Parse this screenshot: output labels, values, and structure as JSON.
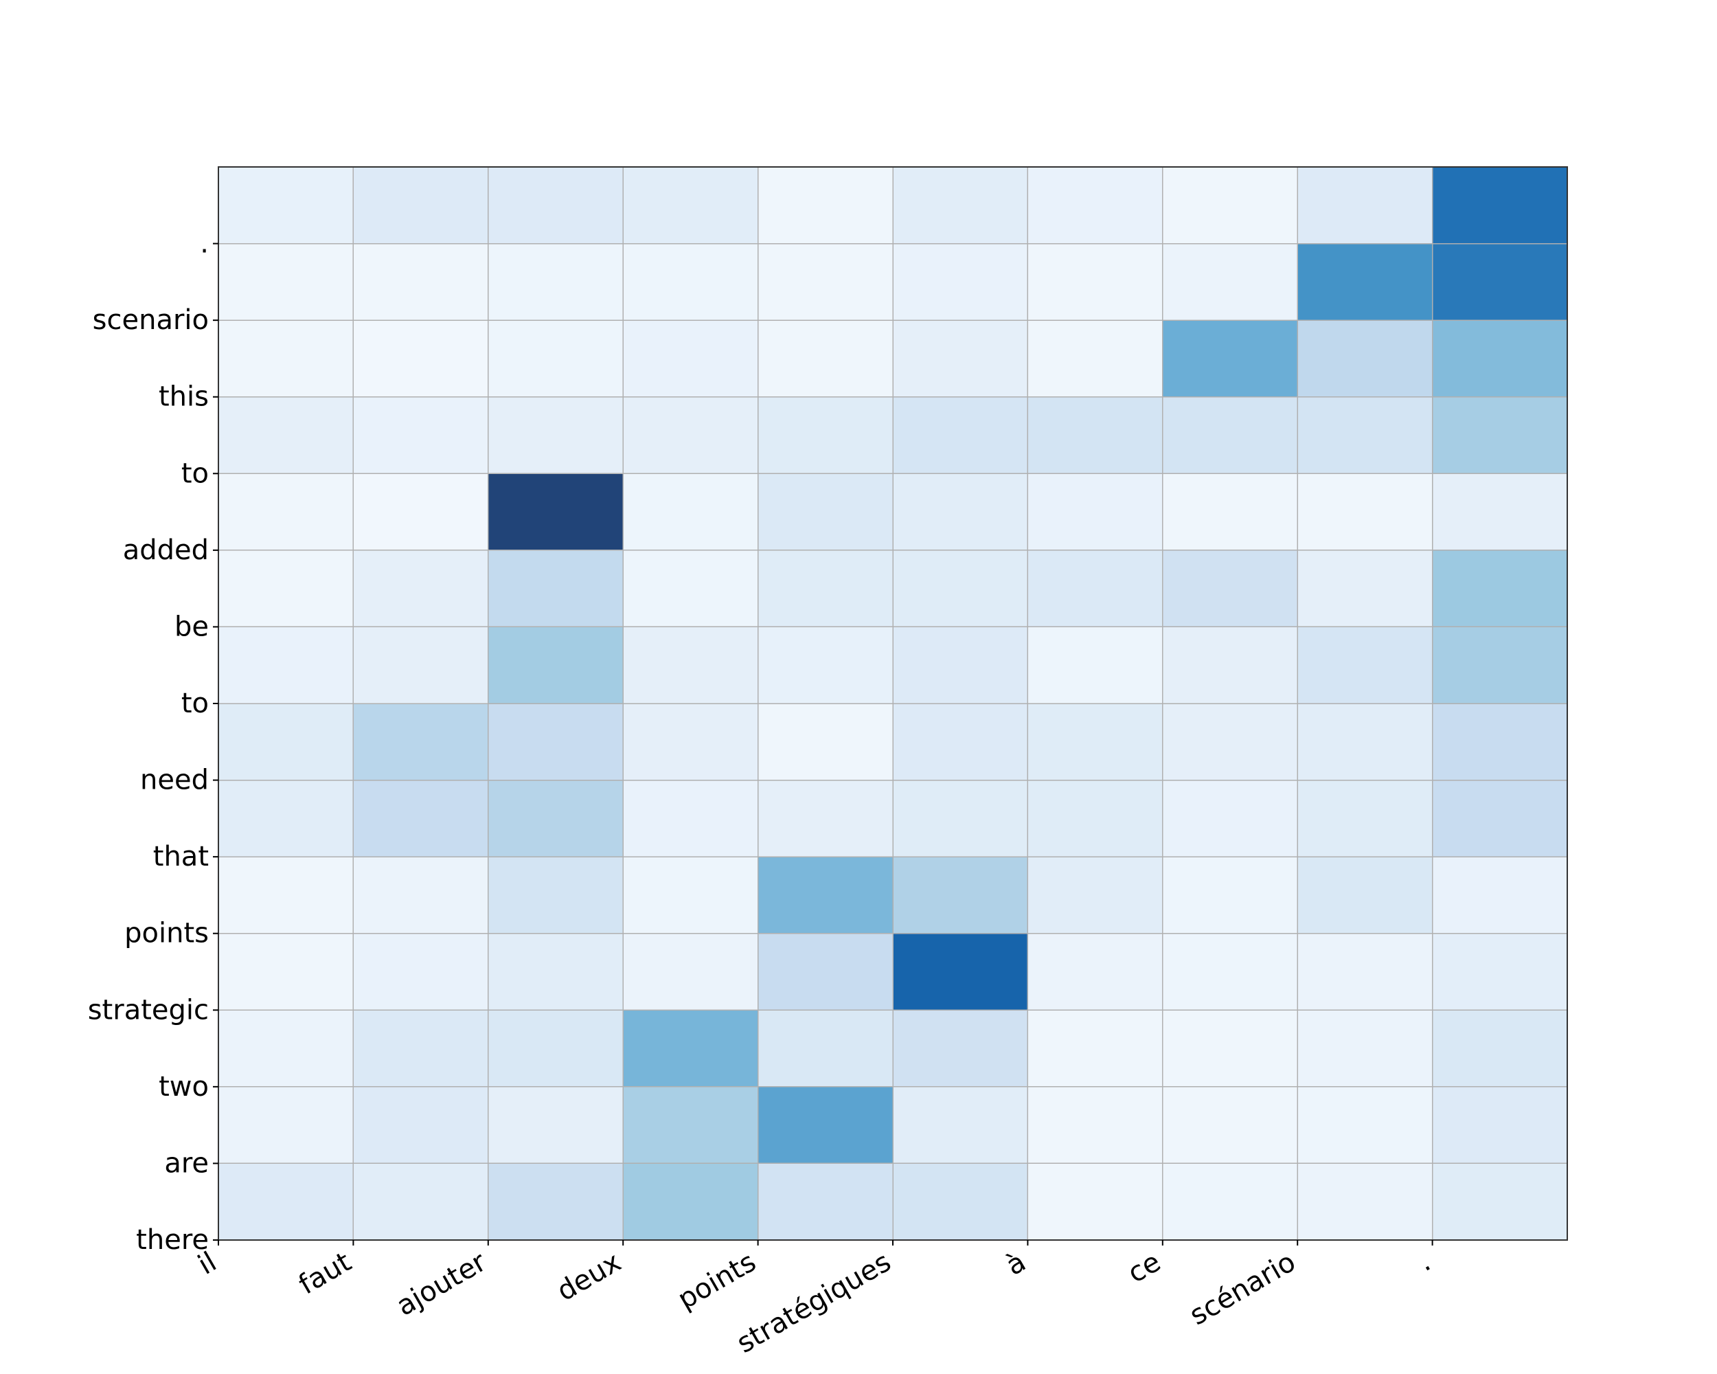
{
  "chart_data": {
    "type": "heatmap",
    "title": "",
    "xlabel": "",
    "ylabel": "",
    "x_labels": [
      "il",
      "faut",
      "ajouter",
      "deux",
      "points",
      "stratégiques",
      "à",
      "ce",
      "scénario",
      "."
    ],
    "y_labels": [
      "there",
      "are",
      "two",
      "strategic",
      "points",
      "that",
      "need",
      "to",
      "be",
      "added",
      "to",
      "this",
      "scenario",
      "."
    ],
    "colormap": "Blues",
    "grid": true,
    "legend": "none",
    "rows_top_to_bottom": [
      [
        0.08,
        0.13,
        0.13,
        0.11,
        0.04,
        0.11,
        0.07,
        0.04,
        0.13,
        0.75
      ],
      [
        0.04,
        0.04,
        0.05,
        0.05,
        0.04,
        0.07,
        0.04,
        0.06,
        0.62,
        0.72
      ],
      [
        0.04,
        0.03,
        0.05,
        0.07,
        0.04,
        0.09,
        0.04,
        0.5,
        0.27,
        0.44
      ],
      [
        0.09,
        0.07,
        0.09,
        0.09,
        0.12,
        0.17,
        0.18,
        0.18,
        0.18,
        0.35
      ],
      [
        0.04,
        0.03,
        1.0,
        0.05,
        0.14,
        0.11,
        0.07,
        0.04,
        0.04,
        0.09
      ],
      [
        0.04,
        0.09,
        0.26,
        0.05,
        0.12,
        0.12,
        0.14,
        0.2,
        0.09,
        0.38
      ],
      [
        0.07,
        0.09,
        0.36,
        0.09,
        0.08,
        0.13,
        0.05,
        0.09,
        0.17,
        0.35
      ],
      [
        0.12,
        0.29,
        0.24,
        0.09,
        0.04,
        0.13,
        0.12,
        0.09,
        0.11,
        0.24
      ],
      [
        0.11,
        0.24,
        0.3,
        0.07,
        0.09,
        0.12,
        0.12,
        0.07,
        0.12,
        0.24
      ],
      [
        0.04,
        0.06,
        0.18,
        0.05,
        0.46,
        0.32,
        0.11,
        0.05,
        0.15,
        0.07
      ],
      [
        0.04,
        0.07,
        0.11,
        0.06,
        0.24,
        0.8,
        0.06,
        0.05,
        0.06,
        0.1
      ],
      [
        0.06,
        0.14,
        0.15,
        0.47,
        0.15,
        0.2,
        0.04,
        0.04,
        0.06,
        0.15
      ],
      [
        0.06,
        0.13,
        0.09,
        0.34,
        0.55,
        0.11,
        0.04,
        0.04,
        0.05,
        0.13
      ],
      [
        0.13,
        0.11,
        0.22,
        0.37,
        0.19,
        0.18,
        0.04,
        0.05,
        0.06,
        0.12
      ]
    ]
  }
}
